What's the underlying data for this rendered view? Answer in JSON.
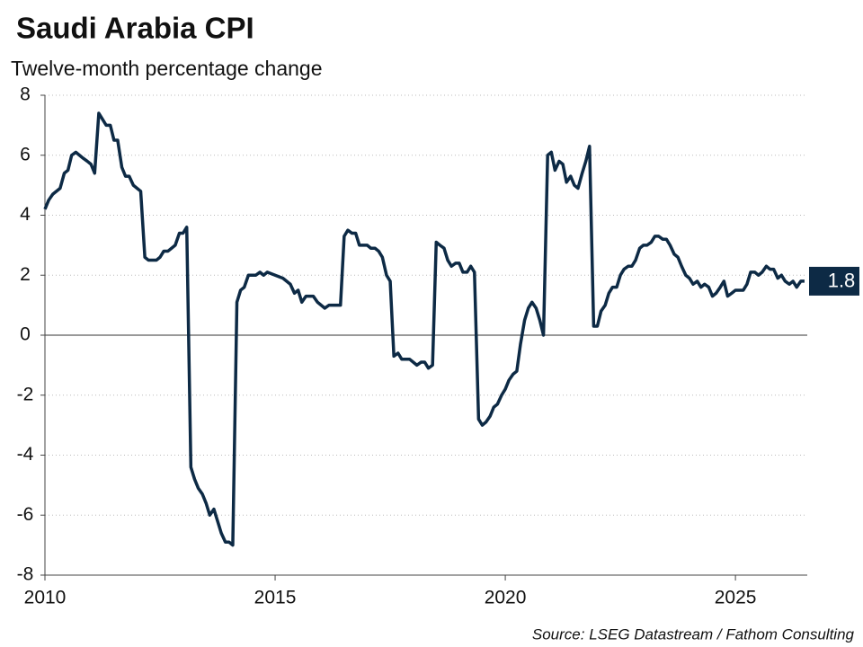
{
  "chart_data": {
    "type": "line",
    "title": "Saudi Arabia CPI",
    "subtitle": "Twelve-month percentage change",
    "source": "Source: LSEG Datastream / Fathom Consulting",
    "color": "#0d2a45",
    "grid": true,
    "xlim": [
      2010,
      2026.56
    ],
    "xticks": [
      2010,
      2015,
      2020,
      2025
    ],
    "ylim": [
      -8,
      8
    ],
    "yticks": [
      -8,
      -6,
      -4,
      -2,
      0,
      2,
      4,
      6,
      8
    ],
    "last_value_label": 1.8,
    "x": [
      2010.0,
      2010.08,
      2010.17,
      2010.33,
      2010.42,
      2010.5,
      2010.58,
      2010.67,
      2010.83,
      2010.92,
      2011.0,
      2011.08,
      2011.17,
      2011.25,
      2011.33,
      2011.42,
      2011.5,
      2011.58,
      2011.67,
      2011.75,
      2011.83,
      2011.92,
      2012.0,
      2012.08,
      2012.17,
      2012.25,
      2012.33,
      2012.42,
      2012.5,
      2012.58,
      2012.67,
      2012.75,
      2012.83,
      2012.92,
      2013.0,
      2013.08,
      2013.17,
      2013.25,
      2013.33,
      2013.42,
      2013.5,
      2013.58,
      2013.67,
      2013.75,
      2013.83,
      2013.92,
      2014.0,
      2014.08,
      2014.17,
      2014.25,
      2014.33,
      2014.42,
      2014.58,
      2014.67,
      2014.75,
      2014.83,
      2015.0,
      2015.17,
      2015.33,
      2015.42,
      2015.5,
      2015.58,
      2015.67,
      2015.83,
      2015.92,
      2016.0,
      2016.08,
      2016.17,
      2016.42,
      2016.5,
      2016.58,
      2016.67,
      2016.75,
      2016.83,
      2016.92,
      2017.0,
      2017.08,
      2017.17,
      2017.25,
      2017.33,
      2017.42,
      2017.5,
      2017.58,
      2017.67,
      2017.75,
      2017.83,
      2017.92,
      2018.0,
      2018.08,
      2018.17,
      2018.25,
      2018.33,
      2018.42,
      2018.5,
      2018.58,
      2018.67,
      2018.75,
      2018.83,
      2018.92,
      2019.0,
      2019.08,
      2019.17,
      2019.25,
      2019.33,
      2019.42,
      2019.5,
      2019.58,
      2019.67,
      2019.75,
      2019.83,
      2019.92,
      2020.0,
      2020.08,
      2020.17,
      2020.25,
      2020.33,
      2020.42,
      2020.5,
      2020.58,
      2020.67,
      2020.75,
      2020.83,
      2020.92,
      2021.0,
      2021.08,
      2021.17,
      2021.25,
      2021.33,
      2021.42,
      2021.5,
      2021.58,
      2021.67,
      2021.75,
      2021.83,
      2021.92,
      2022.0,
      2022.08,
      2022.17,
      2022.25,
      2022.33,
      2022.42,
      2022.5,
      2022.58,
      2022.67,
      2022.75,
      2022.83,
      2022.92,
      2023.0,
      2023.08,
      2023.17,
      2023.25,
      2023.33,
      2023.42,
      2023.5,
      2023.58,
      2023.67,
      2023.75,
      2023.83,
      2023.92,
      2024.0,
      2024.08,
      2024.17,
      2024.25,
      2024.33,
      2024.42,
      2024.5,
      2024.58,
      2024.67,
      2024.75,
      2024.83,
      2024.92,
      2025.0,
      2025.08,
      2025.17,
      2025.25,
      2025.33,
      2025.42,
      2025.5,
      2025.58,
      2025.67,
      2025.75,
      2025.83,
      2025.92,
      2026.0,
      2026.08,
      2026.17,
      2026.25,
      2026.33,
      2026.42,
      2026.5
    ],
    "values": [
      4.2,
      4.5,
      4.7,
      4.9,
      5.4,
      5.5,
      6.0,
      6.1,
      5.9,
      5.8,
      5.7,
      5.4,
      7.4,
      7.2,
      7.0,
      7.0,
      6.5,
      6.5,
      5.6,
      5.3,
      5.3,
      5.0,
      4.9,
      4.8,
      2.6,
      2.5,
      2.5,
      2.5,
      2.6,
      2.8,
      2.8,
      2.9,
      3.0,
      3.4,
      3.4,
      3.6,
      -4.4,
      -4.8,
      -5.1,
      -5.3,
      -5.6,
      -6.0,
      -5.8,
      -6.2,
      -6.6,
      -6.9,
      -6.9,
      -7.0,
      1.1,
      1.5,
      1.6,
      2.0,
      2.0,
      2.1,
      2.0,
      2.1,
      2.0,
      1.9,
      1.7,
      1.4,
      1.5,
      1.1,
      1.3,
      1.3,
      1.1,
      1.0,
      0.9,
      1.0,
      1.0,
      3.3,
      3.5,
      3.4,
      3.4,
      3.0,
      3.0,
      3.0,
      2.9,
      2.9,
      2.8,
      2.6,
      2.0,
      1.8,
      -0.7,
      -0.6,
      -0.8,
      -0.8,
      -0.8,
      -0.9,
      -1.0,
      -0.9,
      -0.9,
      -1.1,
      -1.0,
      3.1,
      3.0,
      2.9,
      2.5,
      2.3,
      2.4,
      2.4,
      2.1,
      2.1,
      2.3,
      2.1,
      -2.8,
      -3.0,
      -2.9,
      -2.7,
      -2.4,
      -2.3,
      -2.0,
      -1.8,
      -1.5,
      -1.3,
      -1.2,
      -0.3,
      0.5,
      0.9,
      1.1,
      0.9,
      0.5,
      0.0,
      6.0,
      6.1,
      5.5,
      5.8,
      5.7,
      5.1,
      5.3,
      5.0,
      4.9,
      5.4,
      5.8,
      6.3,
      0.3,
      0.3,
      0.8,
      1.0,
      1.4,
      1.6,
      1.6,
      2.0,
      2.2,
      2.3,
      2.3,
      2.5,
      2.9,
      3.0,
      3.0,
      3.1,
      3.3,
      3.3,
      3.2,
      3.2,
      3.0,
      2.7,
      2.6,
      2.3,
      2.0,
      1.9,
      1.7,
      1.8,
      1.6,
      1.7,
      1.6,
      1.3,
      1.4,
      1.6,
      1.8,
      1.3,
      1.4,
      1.5,
      1.5,
      1.5,
      1.7,
      2.1,
      2.1,
      2.0,
      2.1,
      2.3,
      2.2,
      2.2,
      1.9,
      2.0,
      1.8,
      1.7,
      1.8,
      1.6,
      1.8,
      1.8
    ]
  }
}
